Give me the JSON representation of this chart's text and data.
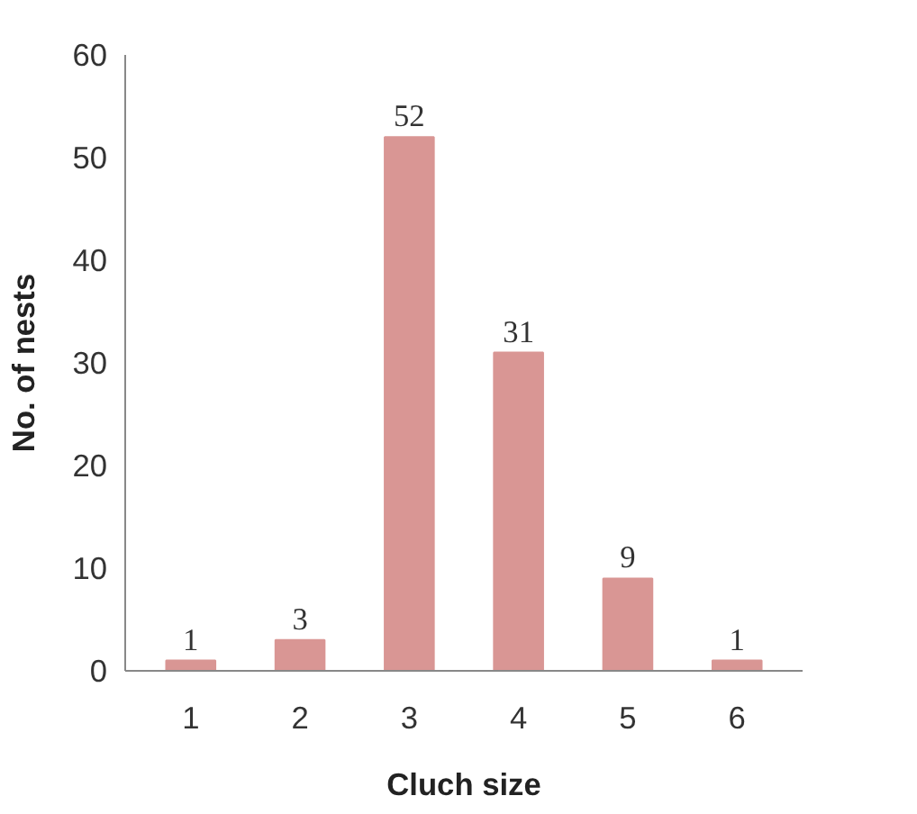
{
  "chart_data": {
    "type": "bar",
    "xlabel": "Cluch size",
    "ylabel": "No. of nests",
    "categories": [
      "1",
      "2",
      "3",
      "4",
      "5",
      "6"
    ],
    "values": [
      1,
      3,
      52,
      31,
      9,
      1
    ],
    "color": "#d99694",
    "ylim": [
      0,
      60
    ],
    "yticks": [
      0,
      10,
      20,
      30,
      40,
      50,
      60
    ],
    "grid": false,
    "data_labels": true
  }
}
